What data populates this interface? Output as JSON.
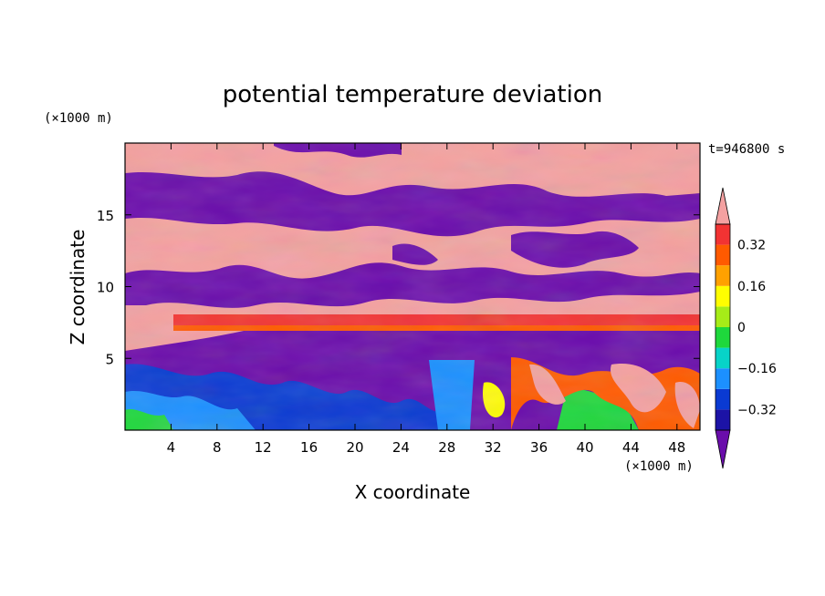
{
  "chart_data": {
    "type": "heatmap",
    "title": "potential temperature deviation",
    "xlabel": "X coordinate",
    "ylabel": "Z coordinate",
    "x_unit": "(×1000 m)",
    "y_unit": "(×1000 m)",
    "time_label": "t=946800 s",
    "xlim": [
      0,
      50
    ],
    "ylim": [
      0,
      20
    ],
    "xticks": [
      4,
      8,
      12,
      16,
      20,
      24,
      28,
      32,
      36,
      40,
      44,
      48
    ],
    "yticks": [
      5,
      10,
      15
    ],
    "colorbar": {
      "levels": [
        -0.4,
        -0.32,
        -0.24,
        -0.16,
        -0.08,
        0,
        0.08,
        0.16,
        0.24,
        0.32,
        0.4
      ],
      "colors": [
        "#6a0dab",
        "#1c13a6",
        "#0a3ad2",
        "#1c90ff",
        "#07d3c8",
        "#1ed83c",
        "#a6ec18",
        "#fffe00",
        "#ffa100",
        "#ff5a00",
        "#f23333",
        "#f4a1a1"
      ],
      "tick_labels": [
        "0.32",
        "0.16",
        "0",
        "-0.16",
        "-0.32"
      ],
      "extend": "both"
    },
    "grid": false
  }
}
